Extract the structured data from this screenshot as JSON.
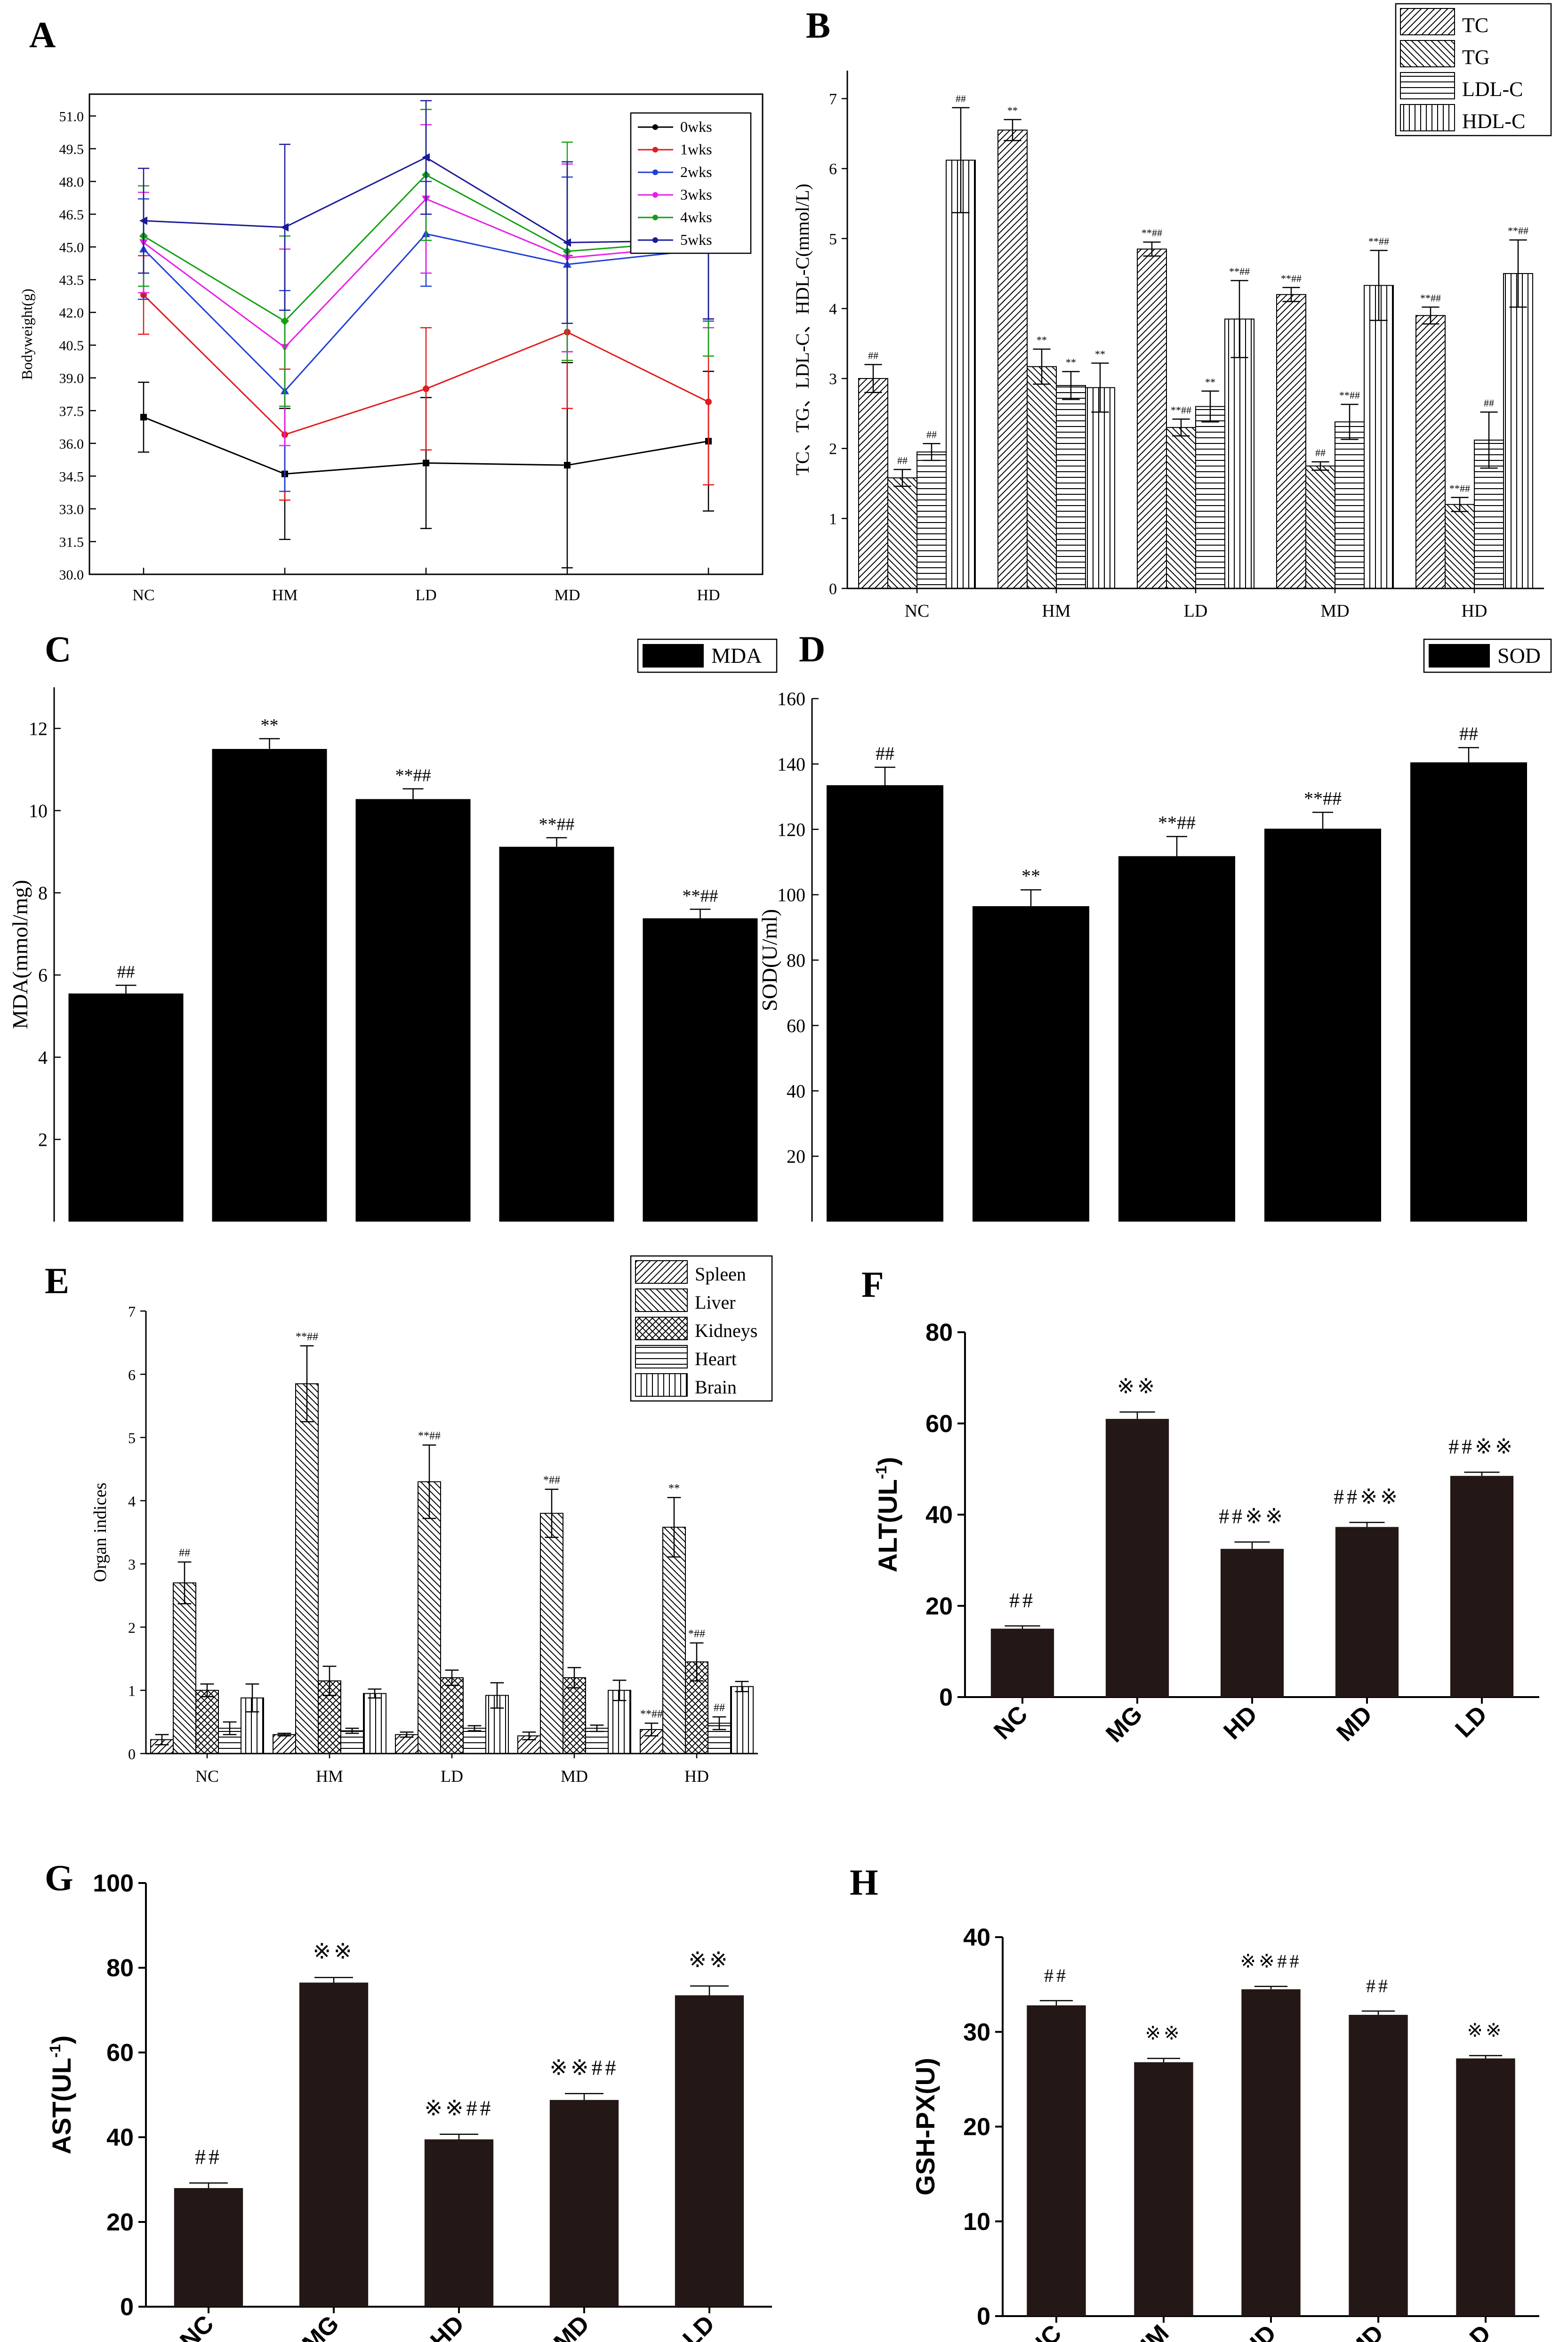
{
  "panels": [
    {
      "letter": "A"
    },
    {
      "letter": "B"
    },
    {
      "letter": "C"
    },
    {
      "letter": "D"
    },
    {
      "letter": "E"
    },
    {
      "letter": "F"
    },
    {
      "letter": "G"
    },
    {
      "letter": "H"
    }
  ],
  "chart_data": [
    {
      "panel": "A",
      "type": "line",
      "ylabel": "Bodyweight(g)",
      "xlabel": "",
      "categories": [
        "NC",
        "HM",
        "LD",
        "MD",
        "HD"
      ],
      "ylim": [
        30.0,
        52.0
      ],
      "yticks": [
        "30.0",
        "31.5",
        "33.0",
        "34.5",
        "36.0",
        "37.5",
        "39.0",
        "40.5",
        "42.0",
        "43.5",
        "45.0",
        "46.5",
        "48.0",
        "49.5",
        "51.0"
      ],
      "legend": "top-right",
      "series": [
        {
          "name": "0wks",
          "color": "#000000",
          "marker": "square",
          "values": [
            37.2,
            34.6,
            35.1,
            35.0,
            36.1
          ],
          "err": [
            1.6,
            3.0,
            3.0,
            4.7,
            3.2
          ]
        },
        {
          "name": "1wks",
          "color": "#e41a1c",
          "marker": "circle",
          "values": [
            42.8,
            36.4,
            38.5,
            41.1,
            37.9
          ],
          "err": [
            1.8,
            3.0,
            2.8,
            3.5,
            3.8
          ]
        },
        {
          "name": "2wks",
          "color": "#1f3fd6",
          "marker": "triangle",
          "values": [
            44.9,
            38.4,
            45.6,
            44.2,
            44.9
          ],
          "err": [
            2.3,
            4.6,
            2.4,
            4.0,
            3.3
          ]
        },
        {
          "name": "3wks",
          "color": "#e81ee8",
          "marker": "triangle-down",
          "values": [
            45.2,
            40.4,
            47.2,
            44.5,
            45.1
          ],
          "err": [
            2.3,
            4.5,
            3.4,
            4.3,
            3.8
          ]
        },
        {
          "name": "4wks",
          "color": "#14a014",
          "marker": "diamond",
          "values": [
            45.5,
            41.6,
            48.3,
            44.8,
            45.3
          ],
          "err": [
            2.3,
            3.9,
            3.0,
            5.0,
            5.3
          ]
        },
        {
          "name": "5wks",
          "color": "#1a1a9a",
          "marker": "triangle-left",
          "values": [
            46.2,
            45.9,
            49.1,
            45.2,
            45.3
          ],
          "err": [
            2.4,
            3.8,
            2.6,
            3.7,
            3.6
          ]
        }
      ]
    },
    {
      "panel": "B",
      "type": "bar",
      "ylabel": "TC、TG、LDL-C、HDL-C(mmol/L)",
      "xlabel": "",
      "categories": [
        "NC",
        "HM",
        "LD",
        "MD",
        "HD"
      ],
      "ylim": [
        0,
        7.4
      ],
      "yticks": [
        "0",
        "1",
        "2",
        "3",
        "4",
        "5",
        "6",
        "7"
      ],
      "legend": "top-right",
      "series": [
        {
          "name": "TC",
          "pattern": "diag-right",
          "values": [
            3.0,
            6.55,
            4.85,
            4.2,
            3.9
          ],
          "err": [
            0.2,
            0.15,
            0.1,
            0.1,
            0.12
          ],
          "marks": [
            "##",
            "**",
            "**##",
            "**##",
            "**##"
          ]
        },
        {
          "name": "TG",
          "pattern": "diag-left",
          "values": [
            1.58,
            3.17,
            2.3,
            1.75,
            1.2
          ],
          "err": [
            0.12,
            0.25,
            0.12,
            0.06,
            0.1
          ],
          "marks": [
            "##",
            "**",
            "**##",
            "##",
            "**##"
          ]
        },
        {
          "name": "LDL-C",
          "pattern": "horizontal",
          "values": [
            1.95,
            2.9,
            2.6,
            2.38,
            2.12
          ],
          "err": [
            0.12,
            0.2,
            0.22,
            0.25,
            0.4
          ],
          "marks": [
            "##",
            "**",
            "**",
            "**##",
            "##"
          ]
        },
        {
          "name": "HDL-C",
          "pattern": "vertical",
          "values": [
            6.12,
            2.87,
            3.85,
            4.33,
            4.5
          ],
          "err": [
            0.75,
            0.35,
            0.55,
            0.5,
            0.48
          ],
          "marks": [
            "##",
            "**",
            "**##",
            "**##",
            "**##"
          ]
        }
      ]
    },
    {
      "panel": "C",
      "type": "bar",
      "ylabel": "MDA(mmol/mg)",
      "xlabel": "",
      "categories": [
        "",
        "",
        "",
        "",
        ""
      ],
      "ylim": [
        0,
        13
      ],
      "yticks": [
        "2",
        "4",
        "6",
        "8",
        "10",
        "12"
      ],
      "legend": "top-right",
      "series": [
        {
          "name": "MDA",
          "color": "#000000",
          "values": [
            5.55,
            11.5,
            10.28,
            9.12,
            7.38
          ],
          "err": [
            0.2,
            0.25,
            0.25,
            0.22,
            0.22
          ],
          "marks": [
            "##",
            "**",
            "**##",
            "**##",
            "**##"
          ]
        }
      ]
    },
    {
      "panel": "D",
      "type": "bar",
      "ylabel": "SOD(U/ml)",
      "xlabel": "",
      "categories": [
        "",
        "",
        "",
        "",
        ""
      ],
      "ylim": [
        0,
        160
      ],
      "yticks": [
        "20",
        "40",
        "60",
        "80",
        "100",
        "120",
        "140",
        "160"
      ],
      "legend": "top-right",
      "series": [
        {
          "name": "SOD",
          "color": "#000000",
          "values": [
            133.5,
            96.5,
            111.8,
            120.2,
            140.5
          ],
          "err": [
            5.5,
            5,
            6,
            5,
            4.5
          ],
          "marks": [
            "##",
            "**",
            "**##",
            "**##",
            "##"
          ]
        }
      ]
    },
    {
      "panel": "E",
      "type": "bar",
      "ylabel": "Organ indices",
      "xlabel": "",
      "categories": [
        "NC",
        "HM",
        "LD",
        "MD",
        "HD"
      ],
      "ylim": [
        0,
        7
      ],
      "yticks": [
        "0",
        "1",
        "2",
        "3",
        "4",
        "5",
        "6",
        "7"
      ],
      "legend": "top-right",
      "series": [
        {
          "name": "Spleen",
          "pattern": "diag-right",
          "values": [
            0.22,
            0.3,
            0.3,
            0.28,
            0.38
          ],
          "err": [
            0.08,
            0.02,
            0.04,
            0.06,
            0.1
          ],
          "marks": [
            "",
            "",
            "",
            "",
            "**##"
          ]
        },
        {
          "name": "Liver",
          "pattern": "diag-left",
          "values": [
            2.7,
            5.85,
            4.3,
            3.8,
            3.58
          ],
          "err": [
            0.33,
            0.6,
            0.58,
            0.38,
            0.47
          ],
          "marks": [
            "##",
            "**##",
            "**##",
            "*##",
            "**"
          ]
        },
        {
          "name": "Kidneys",
          "pattern": "cross",
          "values": [
            1.0,
            1.15,
            1.2,
            1.2,
            1.45
          ],
          "err": [
            0.1,
            0.23,
            0.12,
            0.16,
            0.3
          ],
          "marks": [
            "",
            "",
            "",
            "",
            "*##"
          ]
        },
        {
          "name": "Heart",
          "pattern": "horizontal",
          "values": [
            0.4,
            0.36,
            0.4,
            0.4,
            0.48
          ],
          "err": [
            0.1,
            0.04,
            0.04,
            0.05,
            0.1
          ],
          "marks": [
            "",
            "",
            "",
            "",
            "##"
          ]
        },
        {
          "name": "Brain",
          "pattern": "vertical",
          "values": [
            0.88,
            0.95,
            0.92,
            1.0,
            1.06
          ],
          "err": [
            0.22,
            0.07,
            0.2,
            0.16,
            0.08
          ],
          "marks": [
            "",
            "",
            "",
            "",
            ""
          ]
        }
      ]
    },
    {
      "panel": "F",
      "type": "bar",
      "ylabel": "ALT(UL",
      "ylabel_sup": "-1",
      "ylabel_end": ")",
      "xlabel": "",
      "categories": [
        "NC",
        "MG",
        "HD",
        "MD",
        "LD"
      ],
      "ylim": [
        0,
        80
      ],
      "yticks": [
        "0",
        "20",
        "40",
        "60",
        "80"
      ],
      "series": [
        {
          "name": "",
          "color": "#231815",
          "values": [
            15,
            61,
            32.5,
            37.3,
            48.5
          ],
          "err": [
            0.6,
            1.5,
            1.5,
            1,
            0.8
          ],
          "marks": [
            "##",
            "※※",
            "##※※",
            "##※※",
            "##※※"
          ]
        }
      ]
    },
    {
      "panel": "G",
      "type": "bar",
      "ylabel": "AST(UL",
      "ylabel_sup": "-1",
      "ylabel_end": ")",
      "xlabel": "",
      "categories": [
        "NC",
        "MG",
        "HD",
        "MD",
        "LD"
      ],
      "ylim": [
        0,
        100
      ],
      "yticks": [
        "0",
        "20",
        "40",
        "60",
        "80",
        "100"
      ],
      "series": [
        {
          "name": "",
          "color": "#231815",
          "values": [
            28,
            76.5,
            39.5,
            48.8,
            73.5
          ],
          "err": [
            1.2,
            1.2,
            1.2,
            1.5,
            2.2
          ],
          "marks": [
            "##",
            "※※",
            "※※##",
            "※※##",
            "※※"
          ]
        }
      ]
    },
    {
      "panel": "H",
      "type": "bar",
      "ylabel": "GSH-PX(U)",
      "xlabel": "",
      "categories": [
        "NC",
        "HM",
        "HD",
        "MD",
        "LD"
      ],
      "ylim": [
        0,
        40
      ],
      "yticks": [
        "0",
        "10",
        "20",
        "30",
        "40"
      ],
      "series": [
        {
          "name": "",
          "color": "#231815",
          "values": [
            32.8,
            26.8,
            34.5,
            31.8,
            27.2
          ],
          "err": [
            0.5,
            0.4,
            0.3,
            0.4,
            0.3
          ],
          "marks": [
            "##",
            "※※",
            "※※##",
            "##",
            "※※"
          ]
        }
      ]
    }
  ]
}
